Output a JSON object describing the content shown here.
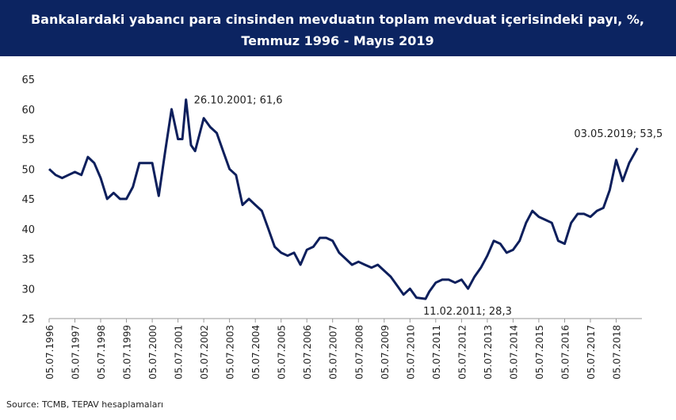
{
  "chart_data": {
    "type": "line",
    "title": "Bankalardaki yabancı para cinsinden mevduatın toplam mevduat içerisindeki payı, %,",
    "subtitle": "Temmuz 1996 - Mayıs 2019",
    "source": "Source: TCMB, TEPAV hesaplamaları",
    "x": [
      "05.07.1996",
      "05.10.1996",
      "05.01.1997",
      "05.04.1997",
      "05.07.1997",
      "05.10.1997",
      "05.01.1998",
      "05.04.1998",
      "05.07.1998",
      "05.10.1998",
      "05.01.1999",
      "05.04.1999",
      "05.07.1999",
      "05.10.1999",
      "05.01.2000",
      "05.04.2000",
      "05.07.2000",
      "05.10.2000",
      "05.01.2001",
      "05.04.2001",
      "05.07.2001",
      "05.09.2001",
      "26.10.2001",
      "05.01.2002",
      "05.03.2002",
      "05.07.2002",
      "05.10.2002",
      "05.01.2003",
      "05.04.2003",
      "05.07.2003",
      "05.10.2003",
      "05.01.2004",
      "05.04.2004",
      "05.07.2004",
      "05.10.2004",
      "05.01.2005",
      "05.04.2005",
      "05.07.2005",
      "05.10.2005",
      "05.01.2006",
      "05.04.2006",
      "05.07.2006",
      "05.10.2006",
      "05.01.2007",
      "05.04.2007",
      "05.07.2007",
      "05.10.2007",
      "05.01.2008",
      "05.04.2008",
      "05.07.2008",
      "05.10.2008",
      "05.01.2009",
      "05.04.2009",
      "05.07.2009",
      "05.10.2009",
      "05.01.2010",
      "05.04.2010",
      "05.07.2010",
      "05.10.2010",
      "11.02.2011",
      "05.04.2011",
      "05.07.2011",
      "05.10.2011",
      "05.01.2012",
      "05.04.2012",
      "05.07.2012",
      "05.10.2012",
      "05.01.2013",
      "05.04.2013",
      "05.07.2013",
      "05.10.2013",
      "05.01.2014",
      "05.04.2014",
      "05.07.2014",
      "05.10.2014",
      "05.01.2015",
      "05.04.2015",
      "05.07.2015",
      "05.10.2015",
      "05.01.2016",
      "05.04.2016",
      "05.07.2016",
      "05.10.2016",
      "05.01.2017",
      "05.04.2017",
      "05.07.2017",
      "05.10.2017",
      "05.01.2018",
      "05.04.2018",
      "05.07.2018",
      "05.10.2018",
      "05.01.2019",
      "03.05.2019"
    ],
    "series": [
      {
        "color": "#0d1f5c",
        "values": [
          50,
          49,
          48.5,
          49,
          49.5,
          49,
          52,
          51,
          48.5,
          45,
          46,
          45,
          45,
          47,
          51,
          51,
          51,
          45.5,
          53,
          60,
          55,
          55,
          61.6,
          54,
          53,
          58.5,
          57,
          56,
          53,
          50,
          49,
          44,
          45,
          44,
          43,
          40,
          37,
          36,
          35.5,
          36,
          34,
          36.5,
          37,
          38.5,
          38.5,
          38,
          36,
          35,
          34,
          34.5,
          34,
          33.5,
          34,
          33,
          32,
          30.5,
          29,
          30,
          28.5,
          28.3,
          29.5,
          31,
          31.5,
          31.5,
          31,
          31.5,
          30,
          32,
          33.5,
          35.5,
          38,
          37.5,
          36,
          36.5,
          38,
          41,
          43,
          42,
          41.5,
          41,
          38,
          37.5,
          41,
          42.5,
          42.5,
          42,
          43,
          43.5,
          46.5,
          51.5,
          48,
          51,
          53.5
        ]
      }
    ],
    "annotations": [
      {
        "text": "26.10.2001; 61,6",
        "x": "26.10.2001",
        "y": 61.6
      },
      {
        "text": "11.02.2011; 28,3",
        "x": "11.02.2011",
        "y": 28.3
      },
      {
        "text": "03.05.2019; 53,5",
        "x": "03.05.2019",
        "y": 53.5
      }
    ],
    "xlim": [
      "05.07.1996",
      "05.07.2019"
    ],
    "xticks": [
      "05.07.1996",
      "05.07.1997",
      "05.07.1998",
      "05.07.1999",
      "05.07.2000",
      "05.07.2001",
      "05.07.2002",
      "05.07.2003",
      "05.07.2004",
      "05.07.2005",
      "05.07.2006",
      "05.07.2007",
      "05.07.2008",
      "05.07.2009",
      "05.07.2010",
      "05.07.2011",
      "05.07.2012",
      "05.07.2013",
      "05.07.2014",
      "05.07.2015",
      "05.07.2016",
      "05.07.2017",
      "05.07.2018"
    ],
    "ylim": [
      25,
      65
    ],
    "yticks": [
      25,
      30,
      35,
      40,
      45,
      50,
      55,
      60,
      65
    ]
  }
}
